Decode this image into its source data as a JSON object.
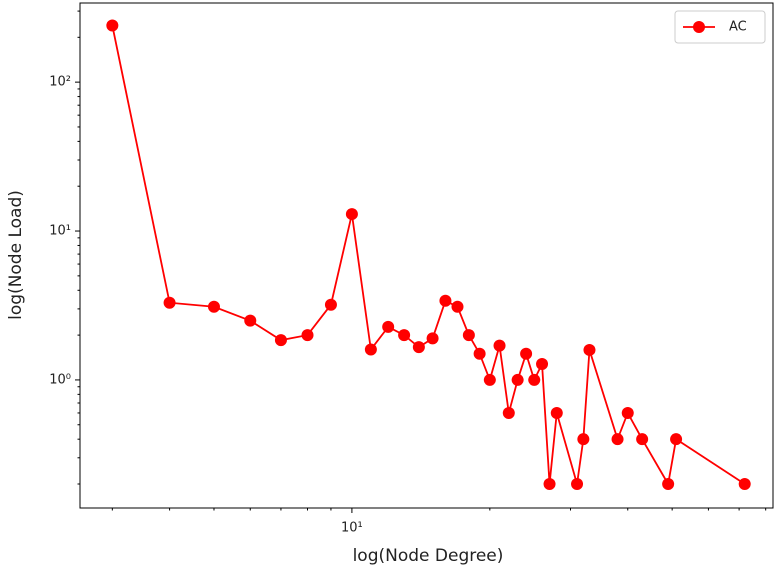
{
  "chart_data": {
    "type": "line",
    "x_label": "log(Node Degree)",
    "y_label": "log(Node Load)",
    "x": [
      3,
      4,
      5,
      6,
      7,
      8,
      9,
      10,
      11,
      12,
      13,
      14,
      15,
      16,
      17,
      18,
      19,
      20,
      21,
      22,
      23,
      24,
      25,
      26,
      27,
      28,
      31,
      32,
      33,
      38,
      40,
      43,
      49,
      51,
      72
    ],
    "series": [
      {
        "name": "AC",
        "color": "#ff0000",
        "values": [
          240,
          3.3,
          3.1,
          2.5,
          1.85,
          2.0,
          3.2,
          13,
          1.6,
          2.27,
          2.0,
          1.66,
          1.9,
          3.4,
          3.1,
          2.0,
          1.5,
          1.0,
          1.7,
          0.6,
          1.0,
          1.5,
          1.0,
          1.28,
          0.2,
          0.6,
          0.2,
          0.4,
          1.59,
          0.4,
          0.6,
          0.4,
          0.2,
          0.4,
          0.2
        ]
      }
    ],
    "xlim": [
      2.55,
      83
    ],
    "ylim": [
      0.138,
      340
    ],
    "xscale": "log",
    "yscale": "log",
    "xticks": [
      {
        "value": 10,
        "label": "10¹"
      }
    ],
    "yticks": [
      {
        "value": 1,
        "label": "10⁰"
      },
      {
        "value": 10,
        "label": "10¹"
      },
      {
        "value": 100,
        "label": "10²"
      }
    ],
    "xminor_ticks": [
      3,
      4,
      5,
      6,
      7,
      8,
      9,
      20,
      30,
      40,
      50,
      60,
      70,
      80
    ],
    "yminor_ticks": [
      0.2,
      0.3,
      0.4,
      0.5,
      0.6,
      0.7,
      0.8,
      0.9,
      2,
      3,
      4,
      5,
      6,
      7,
      8,
      9,
      20,
      30,
      40,
      50,
      60,
      70,
      80,
      90,
      200,
      300
    ],
    "legend": "upper right",
    "grid": false
  }
}
